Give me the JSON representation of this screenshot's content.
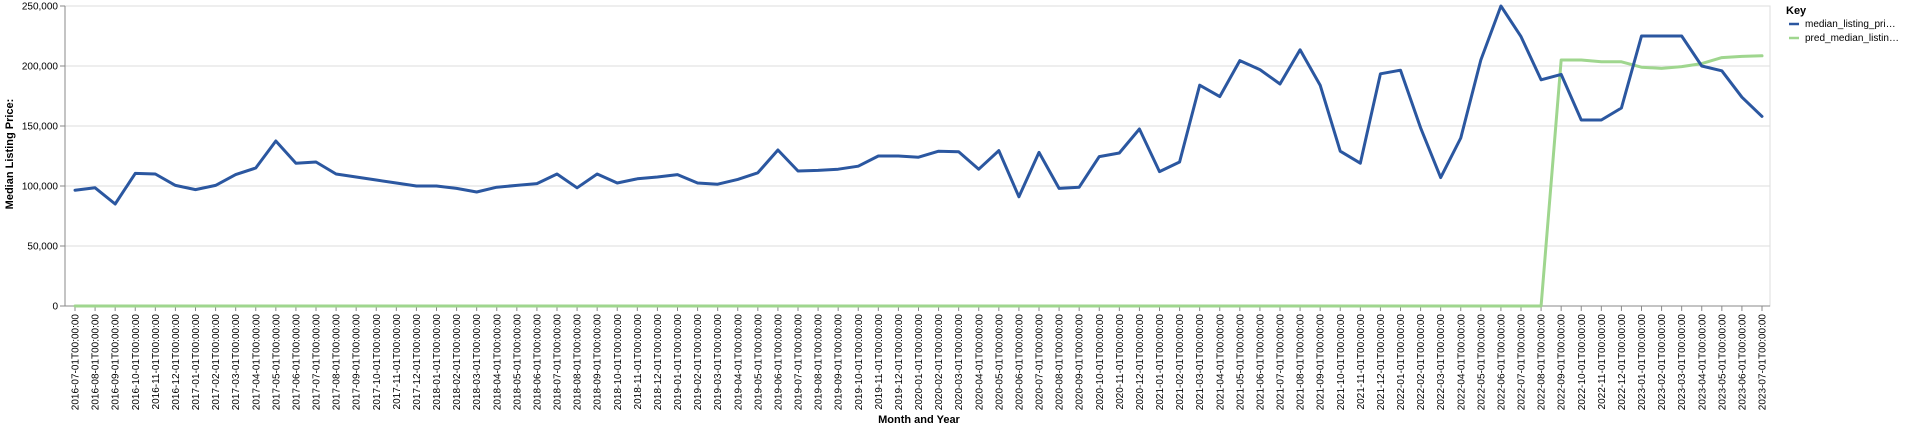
{
  "chart_data": {
    "type": "line",
    "xlabel": "Month and Year",
    "ylabel": "Median Listing Price:",
    "ylim": [
      0,
      250000
    ],
    "yticks": [
      "0",
      "50,000",
      "100,000",
      "150,000",
      "200,000",
      "250,000"
    ],
    "ytick_values": [
      0,
      50000,
      100000,
      150000,
      200000,
      250000
    ],
    "grid": true,
    "legend": {
      "title": "Key",
      "position": "right",
      "labels": [
        "median_listing_pri…",
        "pred_median_listin…"
      ]
    },
    "x": [
      "2016-07-01T00:00:00",
      "2016-08-01T00:00:00",
      "2016-09-01T00:00:00",
      "2016-10-01T00:00:00",
      "2016-11-01T00:00:00",
      "2016-12-01T00:00:00",
      "2017-01-01T00:00:00",
      "2017-02-01T00:00:00",
      "2017-03-01T00:00:00",
      "2017-04-01T00:00:00",
      "2017-05-01T00:00:00",
      "2017-06-01T00:00:00",
      "2017-07-01T00:00:00",
      "2017-08-01T00:00:00",
      "2017-09-01T00:00:00",
      "2017-10-01T00:00:00",
      "2017-11-01T00:00:00",
      "2017-12-01T00:00:00",
      "2018-01-01T00:00:00",
      "2018-02-01T00:00:00",
      "2018-03-01T00:00:00",
      "2018-04-01T00:00:00",
      "2018-05-01T00:00:00",
      "2018-06-01T00:00:00",
      "2018-07-01T00:00:00",
      "2018-08-01T00:00:00",
      "2018-09-01T00:00:00",
      "2018-10-01T00:00:00",
      "2018-11-01T00:00:00",
      "2018-12-01T00:00:00",
      "2019-01-01T00:00:00",
      "2019-02-01T00:00:00",
      "2019-03-01T00:00:00",
      "2019-04-01T00:00:00",
      "2019-05-01T00:00:00",
      "2019-06-01T00:00:00",
      "2019-07-01T00:00:00",
      "2019-08-01T00:00:00",
      "2019-09-01T00:00:00",
      "2019-10-01T00:00:00",
      "2019-11-01T00:00:00",
      "2019-12-01T00:00:00",
      "2020-01-01T00:00:00",
      "2020-02-01T00:00:00",
      "2020-03-01T00:00:00",
      "2020-04-01T00:00:00",
      "2020-05-01T00:00:00",
      "2020-06-01T00:00:00",
      "2020-07-01T00:00:00",
      "2020-08-01T00:00:00",
      "2020-09-01T00:00:00",
      "2020-10-01T00:00:00",
      "2020-11-01T00:00:00",
      "2020-12-01T00:00:00",
      "2021-01-01T00:00:00",
      "2021-02-01T00:00:00",
      "2021-03-01T00:00:00",
      "2021-04-01T00:00:00",
      "2021-05-01T00:00:00",
      "2021-06-01T00:00:00",
      "2021-07-01T00:00:00",
      "2021-08-01T00:00:00",
      "2021-09-01T00:00:00",
      "2021-10-01T00:00:00",
      "2021-11-01T00:00:00",
      "2021-12-01T00:00:00",
      "2022-01-01T00:00:00",
      "2022-02-01T00:00:00",
      "2022-03-01T00:00:00",
      "2022-04-01T00:00:00",
      "2022-05-01T00:00:00",
      "2022-06-01T00:00:00",
      "2022-07-01T00:00:00",
      "2022-08-01T00:00:00",
      "2022-09-01T00:00:00",
      "2022-10-01T00:00:00",
      "2022-11-01T00:00:00",
      "2022-12-01T00:00:00",
      "2023-01-01T00:00:00",
      "2023-02-01T00:00:00",
      "2023-03-01T00:00:00",
      "2023-04-01T00:00:00",
      "2023-05-01T00:00:00",
      "2023-06-01T00:00:00",
      "2023-07-01T00:00:00"
    ],
    "series": [
      {
        "name": "median_listing_pri…",
        "color": "#2b57a0",
        "values": [
          96500,
          98500,
          85000,
          110500,
          110000,
          100500,
          97000,
          100500,
          109500,
          115000,
          137500,
          119000,
          120000,
          110000,
          107500,
          105000,
          102500,
          100000,
          100000,
          98000,
          95000,
          99000,
          100500,
          102000,
          110000,
          98500,
          110000,
          102500,
          106000,
          107500,
          109500,
          102500,
          101500,
          105500,
          111000,
          130000,
          112500,
          113000,
          114000,
          116500,
          125000,
          125000,
          124000,
          129000,
          128500,
          114000,
          129500,
          91000,
          128000,
          98000,
          99000,
          124500,
          127500,
          147500,
          112000,
          120000,
          184000,
          174500,
          204500,
          197000,
          185000,
          213500,
          184000,
          129000,
          119000,
          193500,
          196500,
          148500,
          107000,
          140000,
          205000,
          250000,
          224500,
          188500,
          193000,
          155000,
          155000,
          165000,
          225000,
          225000,
          225000,
          200000,
          196000,
          174000,
          158000
        ]
      },
      {
        "name": "pred_median_listin…",
        "color": "#9fd68e",
        "values": [
          0,
          0,
          0,
          0,
          0,
          0,
          0,
          0,
          0,
          0,
          0,
          0,
          0,
          0,
          0,
          0,
          0,
          0,
          0,
          0,
          0,
          0,
          0,
          0,
          0,
          0,
          0,
          0,
          0,
          0,
          0,
          0,
          0,
          0,
          0,
          0,
          0,
          0,
          0,
          0,
          0,
          0,
          0,
          0,
          0,
          0,
          0,
          0,
          0,
          0,
          0,
          0,
          0,
          0,
          0,
          0,
          0,
          0,
          0,
          0,
          0,
          0,
          0,
          0,
          0,
          0,
          0,
          0,
          0,
          0,
          0,
          0,
          0,
          0,
          205000,
          205000,
          203500,
          203500,
          199000,
          198000,
          199500,
          202000,
          207000,
          208000,
          208500
        ]
      }
    ]
  }
}
